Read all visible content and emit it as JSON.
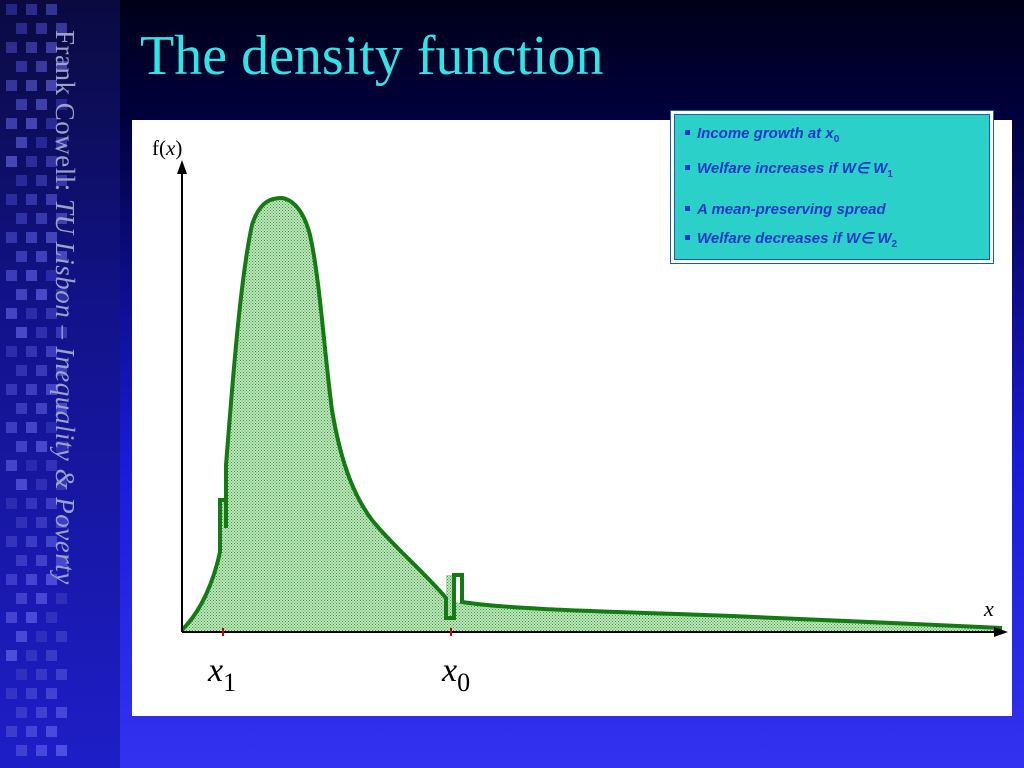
{
  "slide": {
    "title": "The density function",
    "side_text": {
      "plain": "Frank Cowell: ",
      "italic": "TU Lisbon – Inequality & Poverty"
    }
  },
  "diagram": {
    "y_axis_label": {
      "prefix": "f(",
      "var": "x",
      "suffix": ")"
    },
    "x_axis_label": "x",
    "tick_labels": [
      {
        "var": "x",
        "sub": "1"
      },
      {
        "var": "x",
        "sub": "0"
      }
    ],
    "colors": {
      "curve": "#147a14",
      "fill": "#9ed89e",
      "axis": "#000000"
    }
  },
  "legend": {
    "items": [
      {
        "text": "Income growth at x",
        "sub": "0"
      },
      {
        "text": "Welfare increases if W∈ W",
        "sub": "1"
      },
      {
        "text": "A mean-preserving spread",
        "sub": ""
      },
      {
        "text": "Welfare decreases if W∈ W",
        "sub": "2"
      }
    ],
    "bg_color": "#2bd1c8",
    "text_color": "#1838c8"
  }
}
